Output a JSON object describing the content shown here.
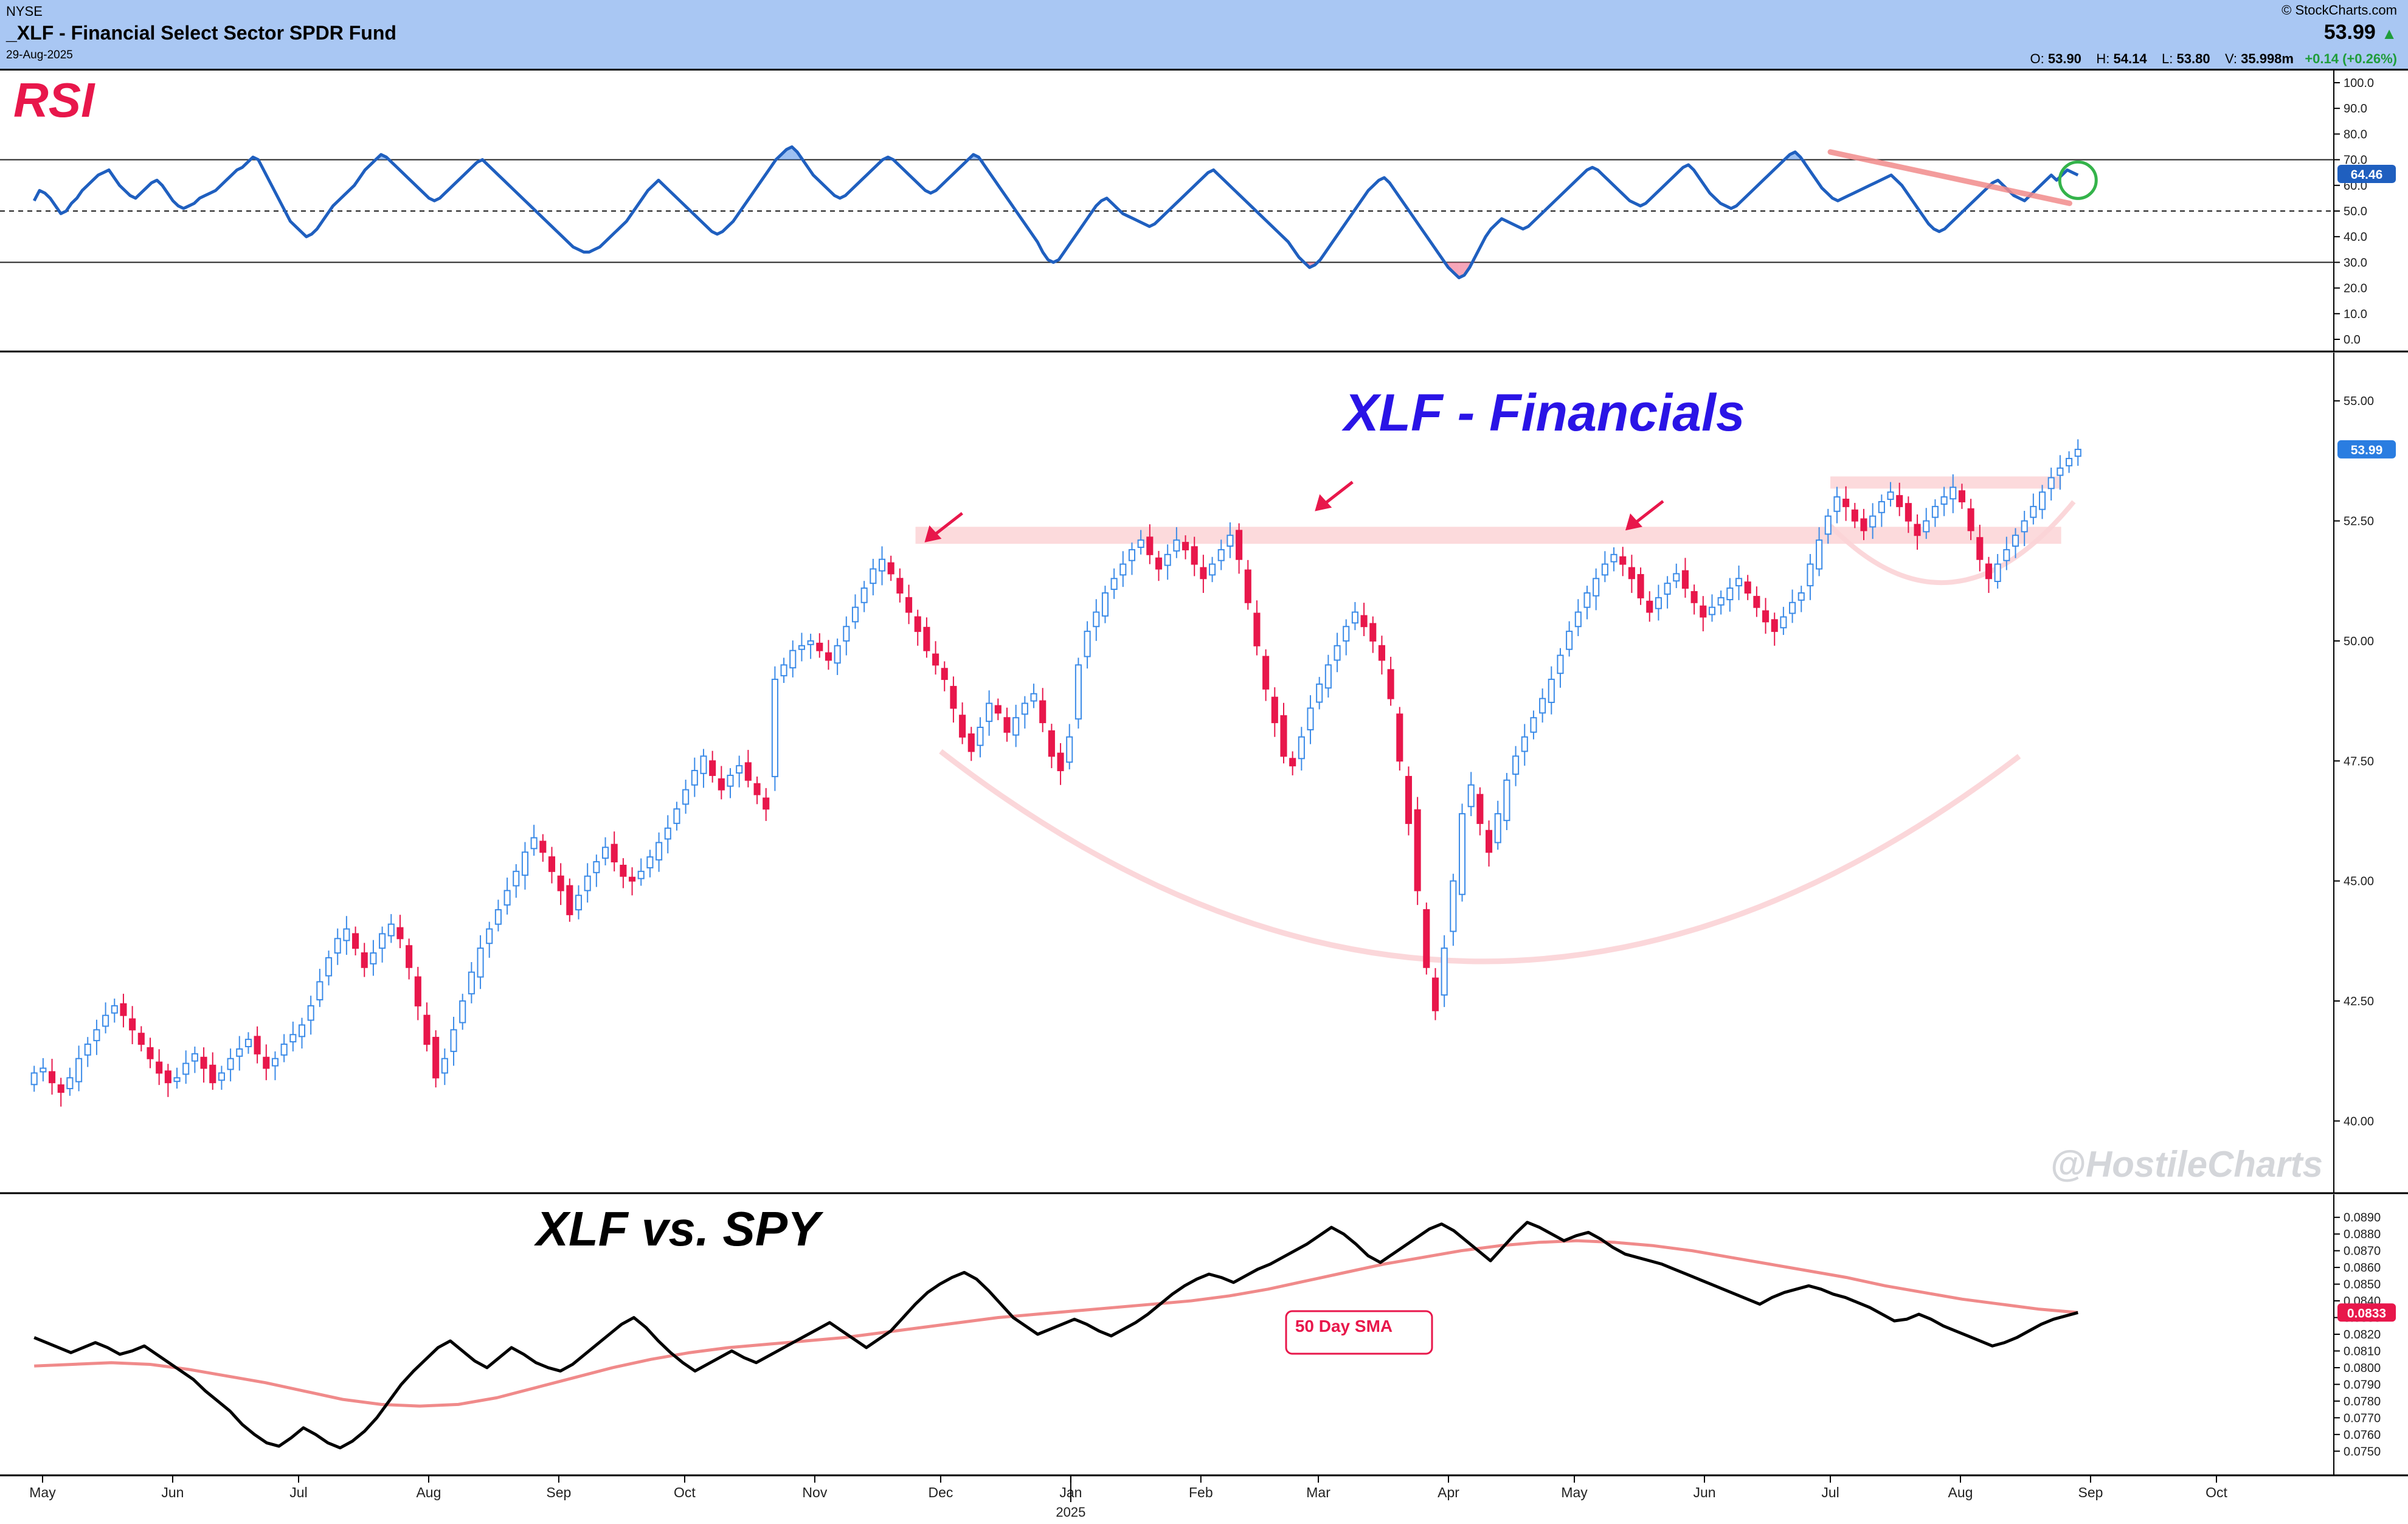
{
  "header": {
    "exchange": "NYSE",
    "title": "_XLF - Financial Select Sector SPDR Fund",
    "date": "29-Aug-2025",
    "brand": "© StockCharts.com",
    "last_price": "53.99",
    "ohlc": {
      "open_label": "O:",
      "open": "53.90",
      "high_label": "H:",
      "high": "54.14",
      "low_label": "L:",
      "low": "53.80",
      "volume_label": "V:",
      "volume": "35.998m",
      "change": "+0.14 (+0.26%)"
    }
  },
  "colors": {
    "header_bg": "#a9c7f3",
    "rsi_line": "#1f5fbf",
    "up_candle": "#3b8be8",
    "down_candle": "#e8174b",
    "sma_line": "#f08a8a",
    "annotation_red": "#e8174b",
    "annotation_blue": "#2a14e6",
    "highlight_pink": "#fbd3d6"
  },
  "annotations": {
    "rsi_title": "RSI",
    "price_title": "XLF - Financials",
    "ratio_title": "XLF vs. SPY",
    "sma_label": "50 Day SMA",
    "watermark": "@HostileCharts"
  },
  "x_axis": {
    "months": [
      "May",
      "Jun",
      "Jul",
      "Aug",
      "Sep",
      "Oct",
      "Nov",
      "Dec",
      "Jan",
      "Feb",
      "Mar",
      "Apr",
      "May",
      "Jun",
      "Jul",
      "Aug",
      "Sep",
      "Oct"
    ],
    "year_label": "2025"
  },
  "chart_data": [
    {
      "type": "line",
      "name": "RSI",
      "title": "RSI",
      "ylim": [
        0,
        100
      ],
      "yticks": [
        "100.0",
        "90.0",
        "80.0",
        "70.0",
        "60.0",
        "50.0",
        "40.0",
        "30.0",
        "20.0",
        "10.0",
        "0.0"
      ],
      "reference_lines": [
        70,
        50,
        30
      ],
      "last_value": "64.46",
      "x_start": "2024-04-29",
      "x_end": "2025-08-29",
      "values": [
        54,
        58,
        57,
        55,
        52,
        49,
        50,
        53,
        55,
        58,
        60,
        62,
        64,
        65,
        66,
        63,
        60,
        58,
        56,
        55,
        57,
        59,
        61,
        62,
        60,
        57,
        54,
        52,
        51,
        52,
        53,
        55,
        56,
        57,
        58,
        60,
        62,
        64,
        66,
        67,
        69,
        71,
        70,
        66,
        62,
        58,
        54,
        50,
        46,
        44,
        42,
        40,
        41,
        43,
        46,
        49,
        52,
        54,
        56,
        58,
        60,
        63,
        66,
        68,
        70,
        72,
        71,
        69,
        67,
        65,
        63,
        61,
        59,
        57,
        55,
        54,
        55,
        57,
        59,
        61,
        63,
        65,
        67,
        69,
        70,
        68,
        66,
        64,
        62,
        60,
        58,
        56,
        54,
        52,
        50,
        48,
        46,
        44,
        42,
        40,
        38,
        36,
        35,
        34,
        34,
        35,
        36,
        38,
        40,
        42,
        44,
        46,
        49,
        52,
        55,
        58,
        60,
        62,
        60,
        58,
        56,
        54,
        52,
        50,
        48,
        46,
        44,
        42,
        41,
        42,
        44,
        46,
        49,
        52,
        55,
        58,
        61,
        64,
        67,
        70,
        72,
        74,
        75,
        73,
        70,
        67,
        64,
        62,
        60,
        58,
        56,
        55,
        56,
        58,
        60,
        62,
        64,
        66,
        68,
        70,
        71,
        70,
        68,
        66,
        64,
        62,
        60,
        58,
        57,
        58,
        60,
        62,
        64,
        66,
        68,
        70,
        72,
        71,
        68,
        65,
        62,
        59,
        56,
        53,
        50,
        47,
        44,
        41,
        38,
        34,
        31,
        30,
        31,
        34,
        37,
        40,
        43,
        46,
        49,
        52,
        54,
        55,
        53,
        51,
        49,
        48,
        47,
        46,
        45,
        44,
        45,
        47,
        49,
        51,
        53,
        55,
        57,
        59,
        61,
        63,
        65,
        66,
        64,
        62,
        60,
        58,
        56,
        54,
        52,
        50,
        48,
        46,
        44,
        42,
        40,
        38,
        35,
        32,
        30,
        28,
        29,
        31,
        34,
        37,
        40,
        43,
        46,
        49,
        52,
        55,
        58,
        60,
        62,
        63,
        61,
        58,
        55,
        52,
        49,
        46,
        43,
        40,
        37,
        34,
        31,
        28,
        26,
        24,
        25,
        28,
        32,
        36,
        40,
        43,
        45,
        47,
        46,
        45,
        44,
        43,
        44,
        46,
        48,
        50,
        52,
        54,
        56,
        58,
        60,
        62,
        64,
        66,
        67,
        66,
        64,
        62,
        60,
        58,
        56,
        54,
        53,
        52,
        53,
        55,
        57,
        59,
        61,
        63,
        65,
        67,
        68,
        66,
        63,
        60,
        57,
        55,
        53,
        52,
        51,
        52,
        54,
        56,
        58,
        60,
        62,
        64,
        66,
        68,
        70,
        72,
        73,
        71,
        68,
        65,
        62,
        59,
        57,
        55,
        54,
        55,
        56,
        57,
        58,
        59,
        60,
        61,
        62,
        63,
        64,
        62,
        60,
        57,
        54,
        51,
        48,
        45,
        43,
        42,
        43,
        45,
        47,
        49,
        51,
        53,
        55,
        57,
        59,
        61,
        62,
        60,
        58,
        56,
        55,
        54,
        56,
        58,
        60,
        62,
        64,
        62,
        64,
        66,
        65,
        64
      ]
    },
    {
      "type": "candlestick",
      "name": "XLF",
      "title": "XLF - Financials",
      "ylim": [
        38.75,
        55.75
      ],
      "yticks": [
        "55.00",
        "52.50",
        "50.00",
        "47.50",
        "45.00",
        "42.50",
        "40.00"
      ],
      "last_value": "53.99",
      "resistance_level": 52.2,
      "recent_range_top": 53.3,
      "x_start": "2024-04-29",
      "x_end": "2025-08-29",
      "close": [
        41.0,
        41.1,
        40.8,
        40.6,
        40.9,
        41.3,
        41.6,
        41.9,
        42.2,
        42.4,
        42.2,
        41.9,
        41.6,
        41.3,
        41.0,
        40.8,
        40.9,
        41.2,
        41.4,
        41.1,
        40.8,
        41.0,
        41.3,
        41.5,
        41.7,
        41.4,
        41.1,
        41.3,
        41.6,
        41.8,
        42.0,
        42.4,
        42.9,
        43.4,
        43.8,
        44.0,
        43.6,
        43.2,
        43.5,
        43.9,
        44.1,
        43.8,
        43.2,
        42.4,
        41.6,
        40.9,
        41.3,
        41.9,
        42.5,
        43.1,
        43.6,
        44.0,
        44.4,
        44.8,
        45.2,
        45.6,
        45.9,
        45.6,
        45.2,
        44.8,
        44.3,
        44.7,
        45.1,
        45.4,
        45.7,
        45.4,
        45.1,
        45.0,
        45.2,
        45.5,
        45.8,
        46.1,
        46.5,
        46.9,
        47.3,
        47.6,
        47.2,
        46.9,
        47.2,
        47.4,
        47.1,
        46.8,
        46.5,
        49.2,
        49.5,
        49.8,
        49.9,
        50.0,
        49.8,
        49.6,
        49.9,
        50.3,
        50.7,
        51.1,
        51.5,
        51.7,
        51.4,
        51.0,
        50.6,
        50.2,
        49.8,
        49.5,
        49.2,
        48.6,
        48.0,
        47.7,
        48.2,
        48.7,
        48.5,
        48.1,
        48.4,
        48.7,
        48.9,
        48.3,
        47.6,
        47.3,
        48.0,
        49.5,
        50.2,
        50.6,
        51.0,
        51.3,
        51.6,
        51.9,
        52.1,
        51.8,
        51.5,
        51.8,
        52.1,
        51.9,
        51.6,
        51.3,
        51.6,
        51.9,
        52.2,
        51.7,
        50.8,
        49.9,
        49.0,
        48.3,
        47.6,
        47.4,
        48.0,
        48.6,
        49.1,
        49.5,
        49.9,
        50.3,
        50.6,
        50.3,
        50.0,
        49.6,
        48.8,
        47.5,
        46.2,
        44.8,
        43.2,
        42.3,
        43.6,
        45.0,
        46.4,
        47.0,
        46.2,
        45.6,
        46.4,
        47.1,
        47.6,
        48.0,
        48.4,
        48.8,
        49.2,
        49.7,
        50.2,
        50.6,
        51.0,
        51.3,
        51.6,
        51.8,
        51.6,
        51.3,
        50.9,
        50.6,
        50.9,
        51.2,
        51.4,
        51.1,
        50.8,
        50.5,
        50.7,
        50.9,
        51.1,
        51.3,
        51.0,
        50.7,
        50.4,
        50.2,
        50.5,
        50.8,
        51.0,
        51.6,
        52.1,
        52.6,
        53.0,
        52.8,
        52.5,
        52.3,
        52.6,
        52.9,
        53.1,
        52.8,
        52.5,
        52.2,
        52.5,
        52.8,
        53.0,
        53.2,
        52.9,
        52.3,
        51.7,
        51.3,
        51.6,
        51.9,
        52.2,
        52.5,
        52.8,
        53.1,
        53.4,
        53.6,
        53.8,
        53.99
      ]
    },
    {
      "type": "line",
      "name": "XLF:SPY",
      "title": "XLF vs. SPY",
      "ylim": [
        0.0745,
        0.0895
      ],
      "yticks": [
        "0.0890",
        "0.0880",
        "0.0870",
        "0.0860",
        "0.0850",
        "0.0840",
        "0.0830",
        "0.0820",
        "0.0810",
        "0.0800",
        "0.0790",
        "0.0780",
        "0.0770",
        "0.0760",
        "0.0750"
      ],
      "last_value": "0.0833",
      "x_start": "2024-04-29",
      "x_end": "2025-08-29",
      "values": [
        0.0818,
        0.0815,
        0.0812,
        0.0809,
        0.0812,
        0.0815,
        0.0812,
        0.0808,
        0.081,
        0.0813,
        0.0808,
        0.0803,
        0.0798,
        0.0793,
        0.0786,
        0.078,
        0.0774,
        0.0766,
        0.076,
        0.0755,
        0.0753,
        0.0758,
        0.0764,
        0.076,
        0.0755,
        0.0752,
        0.0756,
        0.0762,
        0.077,
        0.078,
        0.079,
        0.0798,
        0.0805,
        0.0812,
        0.0816,
        0.081,
        0.0804,
        0.08,
        0.0806,
        0.0812,
        0.0808,
        0.0803,
        0.08,
        0.0798,
        0.0802,
        0.0808,
        0.0814,
        0.082,
        0.0826,
        0.083,
        0.0824,
        0.0816,
        0.0809,
        0.0803,
        0.0798,
        0.0802,
        0.0806,
        0.081,
        0.0806,
        0.0803,
        0.0807,
        0.0811,
        0.0815,
        0.0819,
        0.0823,
        0.0827,
        0.0822,
        0.0817,
        0.0812,
        0.0817,
        0.0822,
        0.083,
        0.0838,
        0.0845,
        0.085,
        0.0854,
        0.0857,
        0.0853,
        0.0846,
        0.0838,
        0.083,
        0.0825,
        0.082,
        0.0823,
        0.0826,
        0.0829,
        0.0826,
        0.0822,
        0.0819,
        0.0823,
        0.0827,
        0.0832,
        0.0838,
        0.0844,
        0.0849,
        0.0853,
        0.0856,
        0.0854,
        0.0851,
        0.0855,
        0.0859,
        0.0862,
        0.0866,
        0.087,
        0.0874,
        0.0879,
        0.0884,
        0.088,
        0.0874,
        0.0867,
        0.0863,
        0.0868,
        0.0873,
        0.0878,
        0.0883,
        0.0886,
        0.0882,
        0.0876,
        0.087,
        0.0864,
        0.0872,
        0.088,
        0.0887,
        0.0884,
        0.088,
        0.0876,
        0.0879,
        0.0881,
        0.0877,
        0.0872,
        0.0868,
        0.0866,
        0.0864,
        0.0862,
        0.0859,
        0.0856,
        0.0853,
        0.085,
        0.0847,
        0.0844,
        0.0841,
        0.0838,
        0.0842,
        0.0845,
        0.0847,
        0.0849,
        0.0847,
        0.0844,
        0.0842,
        0.0839,
        0.0836,
        0.0832,
        0.0828,
        0.0829,
        0.0832,
        0.0829,
        0.0825,
        0.0822,
        0.0819,
        0.0816,
        0.0813,
        0.0815,
        0.0818,
        0.0822,
        0.0826,
        0.0829,
        0.0831,
        0.0833
      ]
    },
    {
      "type": "line",
      "name": "50 Day SMA",
      "title": "50 Day SMA",
      "x_start": "2024-04-29",
      "x_end": "2025-08-29",
      "values": [
        0.0801,
        0.0802,
        0.0803,
        0.0802,
        0.0799,
        0.0795,
        0.0791,
        0.0786,
        0.0781,
        0.0778,
        0.0777,
        0.0778,
        0.0782,
        0.0788,
        0.0794,
        0.08,
        0.0805,
        0.0809,
        0.0812,
        0.0814,
        0.0816,
        0.0818,
        0.0821,
        0.0824,
        0.0827,
        0.083,
        0.0832,
        0.0834,
        0.0836,
        0.0838,
        0.084,
        0.0843,
        0.0847,
        0.0852,
        0.0857,
        0.0862,
        0.0866,
        0.087,
        0.0873,
        0.0875,
        0.0876,
        0.0875,
        0.0873,
        0.087,
        0.0866,
        0.0862,
        0.0858,
        0.0854,
        0.0849,
        0.0845,
        0.0841,
        0.0838,
        0.0835,
        0.0833
      ]
    }
  ]
}
